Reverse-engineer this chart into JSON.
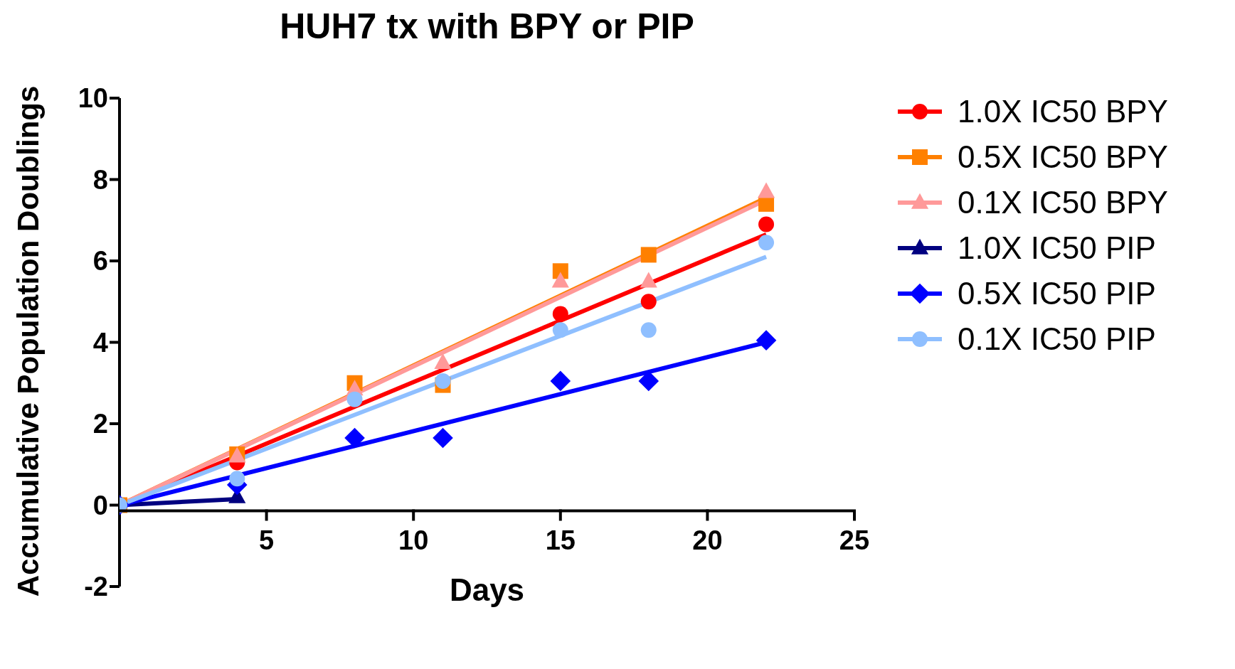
{
  "chart_data": {
    "type": "scatter",
    "title": "HUH7 tx with BPY or PIP",
    "xlabel": "Days",
    "ylabel": "Accumulative Population Doublings",
    "x": [
      0,
      4,
      8,
      11,
      15,
      18,
      22
    ],
    "xlim": [
      0,
      25
    ],
    "xticks": [
      5,
      10,
      15,
      20,
      25
    ],
    "ylim": [
      -2,
      10
    ],
    "yticks": [
      -2,
      0,
      2,
      4,
      6,
      8,
      10
    ],
    "grid": false,
    "legend": "right",
    "series": [
      {
        "type": "line",
        "x": [
          0,
          22
        ],
        "values": [
          0,
          6.65
        ],
        "color": "#ff0000",
        "marker": "none"
      },
      {
        "type": "line",
        "x": [
          0,
          22
        ],
        "values": [
          0,
          7.55
        ],
        "color": "#ff8000",
        "marker": "none"
      },
      {
        "type": "line",
        "x": [
          0,
          22
        ],
        "values": [
          0,
          7.5
        ],
        "color": "#ff9999",
        "marker": "none"
      },
      {
        "type": "line",
        "x": [
          0,
          4
        ],
        "values": [
          0,
          0.15
        ],
        "color": "#000080",
        "marker": "none"
      },
      {
        "type": "line",
        "x": [
          0,
          22
        ],
        "values": [
          0,
          4.0
        ],
        "color": "#0000ff",
        "marker": "none"
      },
      {
        "type": "line",
        "x": [
          0,
          22
        ],
        "values": [
          0,
          6.1
        ],
        "color": "#8fbfff",
        "marker": "none"
      },
      {
        "name": "1.0X IC50 BPY",
        "color": "#ff0000",
        "marker": "circle",
        "values": [
          null,
          1.05,
          null,
          null,
          4.7,
          5.0,
          6.9
        ]
      },
      {
        "name": "0.5X IC50 BPY",
        "color": "#ff8000",
        "marker": "square",
        "values": [
          0,
          1.25,
          3.0,
          2.95,
          5.75,
          6.15,
          7.4
        ]
      },
      {
        "name": "0.1X IC50 BPY",
        "color": "#ff9999",
        "marker": "triangle",
        "values": [
          null,
          1.2,
          2.85,
          3.5,
          5.5,
          5.5,
          7.7
        ]
      },
      {
        "name": "1.0X IC50 PIP",
        "color": "#000080",
        "marker": "triangle",
        "values": [
          null,
          0.2,
          null,
          null,
          null,
          null,
          null
        ]
      },
      {
        "name": "0.5X IC50 PIP",
        "color": "#0000ff",
        "marker": "diamond",
        "values": [
          0,
          0.5,
          1.65,
          1.65,
          3.05,
          3.05,
          4.05
        ]
      },
      {
        "name": "0.1X IC50 PIP",
        "color": "#8fbfff",
        "marker": "circle",
        "values": [
          0,
          0.65,
          2.6,
          3.05,
          4.3,
          4.3,
          6.45
        ]
      }
    ]
  }
}
